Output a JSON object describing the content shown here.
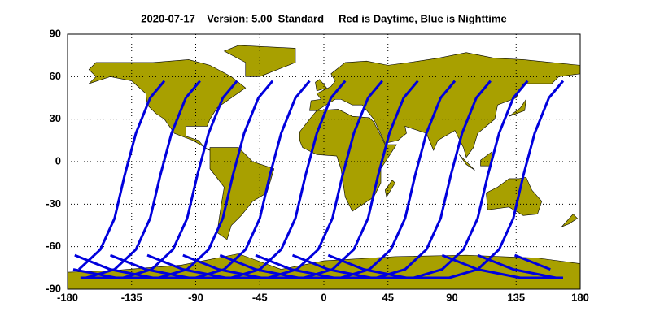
{
  "chart_data": {
    "type": "groundtrack",
    "title": "2020-07-17    Version: 5.00  Standard     Red is Daytime, Blue is Nighttime",
    "xlim": [
      -180,
      180
    ],
    "ylim": [
      -90,
      90
    ],
    "xticks": [
      -180,
      -135,
      -90,
      -45,
      0,
      45,
      90,
      135,
      180
    ],
    "yticks": [
      -90,
      -60,
      -30,
      0,
      30,
      60,
      90
    ],
    "grid": true,
    "color": "#0000dd",
    "series": [
      {
        "x": [
          -112,
          -122,
          -132,
          -140,
          -147,
          -157,
          -172,
          null,
          168,
          138,
          108,
          83
        ],
        "y": [
          57,
          45,
          20,
          -10,
          -40,
          -62,
          -76,
          null,
          -82,
          -82,
          -76,
          -66
        ]
      },
      {
        "x": [
          -87,
          -97,
          -107,
          -115,
          -122,
          -132,
          -147,
          -167,
          null,
          163,
          133,
          108
        ],
        "y": [
          57,
          45,
          20,
          -10,
          -40,
          -62,
          -76,
          -82,
          null,
          -82,
          -76,
          -66
        ]
      },
      {
        "x": [
          -61,
          -71,
          -81,
          -89,
          -96,
          -106,
          -121,
          -141,
          -171,
          null,
          159,
          134
        ],
        "y": [
          57,
          45,
          20,
          -10,
          -40,
          -62,
          -76,
          -82,
          -82,
          null,
          -76,
          -66
        ]
      },
      {
        "x": [
          -36,
          -46,
          -56,
          -64,
          -71,
          -81,
          -96,
          -116,
          -146,
          -176,
          null,
          159
        ],
        "y": [
          57,
          45,
          20,
          -10,
          -40,
          -62,
          -76,
          -82,
          -82,
          -76,
          null,
          -66
        ]
      },
      {
        "x": [
          -10,
          -20,
          -30,
          -38,
          -45,
          -55,
          -70,
          -90,
          -120,
          -150,
          -175
        ],
        "y": [
          57,
          45,
          20,
          -10,
          -40,
          -62,
          -76,
          -82,
          -82,
          -76,
          -66
        ]
      },
      {
        "x": [
          15,
          5,
          -5,
          -13,
          -20,
          -30,
          -45,
          -65,
          -95,
          -125,
          -150
        ],
        "y": [
          57,
          45,
          20,
          -10,
          -40,
          -62,
          -76,
          -82,
          -82,
          -76,
          -66
        ]
      },
      {
        "x": [
          41,
          31,
          21,
          13,
          6,
          -4,
          -19,
          -39,
          -69,
          -99,
          -124
        ],
        "y": [
          57,
          45,
          20,
          -10,
          -40,
          -62,
          -76,
          -82,
          -82,
          -76,
          -66
        ]
      },
      {
        "x": [
          66,
          56,
          46,
          38,
          31,
          21,
          6,
          -14,
          -44,
          -74,
          -99
        ],
        "y": [
          57,
          45,
          20,
          -10,
          -40,
          -62,
          -76,
          -82,
          -82,
          -76,
          -66
        ]
      },
      {
        "x": [
          92,
          82,
          72,
          64,
          57,
          47,
          32,
          12,
          -18,
          -48,
          -73
        ],
        "y": [
          57,
          45,
          20,
          -10,
          -40,
          -62,
          -76,
          -82,
          -82,
          -76,
          -66
        ]
      },
      {
        "x": [
          117,
          107,
          97,
          89,
          82,
          72,
          57,
          37,
          7,
          -23,
          -48
        ],
        "y": [
          57,
          45,
          20,
          -10,
          -40,
          -62,
          -76,
          -82,
          -82,
          -76,
          -66
        ]
      },
      {
        "x": [
          143,
          133,
          123,
          115,
          108,
          98,
          83,
          63,
          33,
          3,
          -22
        ],
        "y": [
          57,
          45,
          20,
          -10,
          -40,
          -62,
          -76,
          -82,
          -82,
          -76,
          -66
        ]
      },
      {
        "x": [
          168,
          158,
          148,
          140,
          133,
          123,
          108,
          88,
          58,
          28,
          3
        ],
        "y": [
          57,
          45,
          20,
          -10,
          -40,
          -62,
          -76,
          -82,
          -82,
          -76,
          -66
        ]
      }
    ]
  }
}
